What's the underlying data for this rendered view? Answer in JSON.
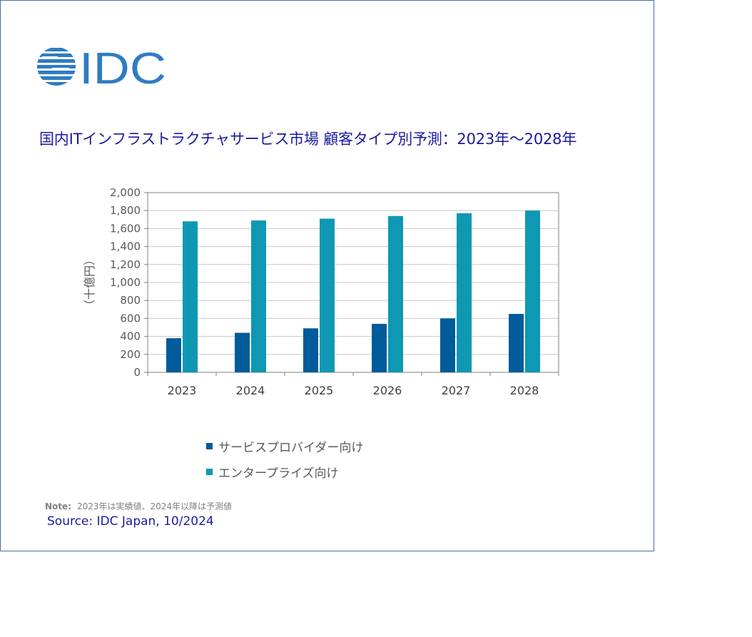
{
  "logo": {
    "text": "IDC",
    "color": "#2f7cc1"
  },
  "title": "国内ITインフラストラクチャサービス市場 顧客タイプ別予測：2023年～2028年",
  "note": {
    "label": "Note:",
    "text": "2023年は実績値、2024年以降は予測値"
  },
  "source": "Source: IDC Japan, 10/2024",
  "chart_data": {
    "type": "bar",
    "title": "国内ITインフラストラクチャサービス市場 顧客タイプ別予測：2023年～2028年",
    "xlabel": "",
    "ylabel": "（十億円）",
    "ylim": [
      0,
      2000
    ],
    "yticks": [
      0,
      200,
      400,
      600,
      800,
      1000,
      1200,
      1400,
      1600,
      1800,
      2000
    ],
    "ytick_labels": [
      "0",
      "200",
      "400",
      "600",
      "800",
      "1,000",
      "1,200",
      "1,400",
      "1,600",
      "1,800",
      "2,000"
    ],
    "categories": [
      "2023",
      "2024",
      "2025",
      "2026",
      "2027",
      "2028"
    ],
    "grid": true,
    "legend_position": "bottom",
    "series": [
      {
        "name": "サービスプロバイダー向け",
        "color": "#005b9a",
        "values": [
          380,
          440,
          490,
          540,
          600,
          650
        ]
      },
      {
        "name": "エンタープライズ向け",
        "color": "#0e98b3",
        "values": [
          1680,
          1690,
          1710,
          1740,
          1770,
          1800
        ]
      }
    ]
  }
}
